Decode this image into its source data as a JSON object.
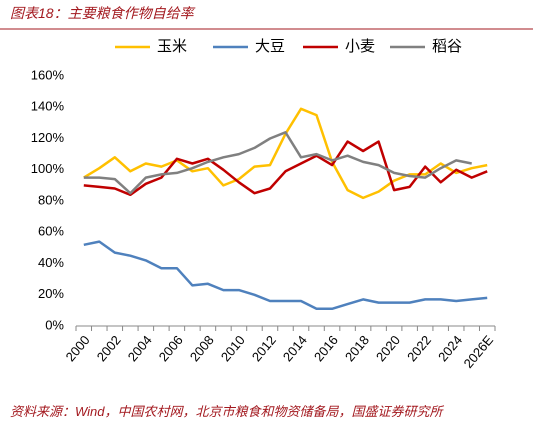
{
  "chart_data": {
    "type": "line",
    "title": "图表18：主要粮食作物自给率",
    "source": "资料来源：Wind，中国农村网，北京市粮食和物资储备局，国盛证券研究所",
    "categories": [
      "2000",
      null,
      "2002",
      null,
      "2004",
      null,
      "2006",
      null,
      "2008",
      null,
      "2010",
      null,
      "2012",
      null,
      "2014",
      null,
      "2016",
      null,
      "2018",
      null,
      "2020",
      null,
      "2022",
      null,
      "2024",
      null,
      "2026E"
    ],
    "ylim": [
      0,
      160
    ],
    "yticks": [
      {
        "value": 0,
        "label": "0%"
      },
      {
        "value": 20,
        "label": "20%"
      },
      {
        "value": 40,
        "label": "40%"
      },
      {
        "value": 60,
        "label": "60%"
      },
      {
        "value": 80,
        "label": "80%"
      },
      {
        "value": 100,
        "label": "100%"
      },
      {
        "value": 120,
        "label": "120%"
      },
      {
        "value": 140,
        "label": "140%"
      },
      {
        "value": 160,
        "label": "160%"
      }
    ],
    "legend": "top",
    "series": [
      {
        "name": "玉米",
        "color": "#ffc000",
        "values": [
          95,
          101,
          108,
          99,
          104,
          102,
          106,
          99,
          101,
          90,
          94,
          102,
          103,
          123,
          139,
          135,
          105,
          87,
          82,
          86,
          93,
          97,
          97,
          104,
          98,
          101,
          103
        ]
      },
      {
        "name": "大豆",
        "color": "#4f81bd",
        "values": [
          52,
          54,
          47,
          45,
          42,
          37,
          37,
          26,
          27,
          23,
          23,
          20,
          16,
          16,
          16,
          11,
          11,
          14,
          17,
          15,
          15,
          15,
          17,
          17,
          16,
          17,
          18
        ]
      },
      {
        "name": "小麦",
        "color": "#c00000",
        "values": [
          90,
          89,
          88,
          84,
          91,
          95,
          107,
          104,
          107,
          100,
          92,
          85,
          88,
          99,
          104,
          109,
          103,
          118,
          112,
          118,
          87,
          89,
          102,
          92,
          100,
          95,
          99
        ]
      },
      {
        "name": "稻谷",
        "color": "#808080",
        "values": [
          95,
          95,
          94,
          85,
          95,
          97,
          98,
          101,
          105,
          108,
          110,
          114,
          120,
          124,
          108,
          110,
          106,
          109,
          105,
          103,
          98,
          96,
          95,
          101,
          106,
          104,
          null
        ]
      }
    ]
  }
}
